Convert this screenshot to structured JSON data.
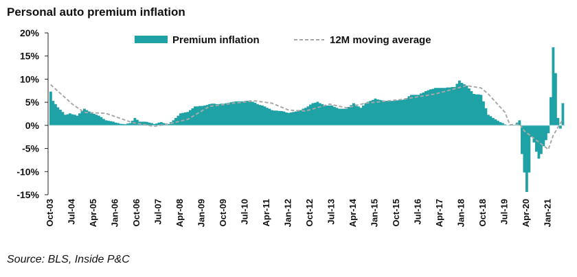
{
  "chart_data": {
    "type": "bar",
    "title": "Personal auto premium inflation",
    "source": "Source: BLS, Inside P&C",
    "xlabel": "",
    "ylabel": "",
    "ylim": [
      -15,
      20
    ],
    "y_ticks": [
      "20%",
      "15%",
      "10%",
      "5%",
      "0%",
      "-5%",
      "-10%",
      "-15%"
    ],
    "y_tick_values": [
      20,
      15,
      10,
      5,
      0,
      -5,
      -10,
      -15
    ],
    "x_start": "Oct-03",
    "x_unit": "months since Oct-03",
    "x_tick_labels": [
      "Oct-03",
      "Jul-04",
      "Apr-05",
      "Jan-06",
      "Oct-06",
      "Jul-07",
      "Apr-08",
      "Jan-09",
      "Oct-09",
      "Jul-10",
      "Apr-11",
      "Jan-12",
      "Oct-12",
      "Jul-13",
      "Apr-14",
      "Jan-15",
      "Oct-15",
      "Jul-16",
      "Apr-17",
      "Jan-18",
      "Oct-18",
      "Jul-19",
      "Apr-20",
      "Jan-21"
    ],
    "x_tick_step_months": 9,
    "legend": {
      "placement": "top-center",
      "entries": [
        "Premium inflation",
        "12M moving average"
      ]
    },
    "colors": {
      "bars": "#1fa2a6",
      "moving_average": "#a8a8a8"
    },
    "series": [
      {
        "name": "Premium inflation",
        "type": "bar",
        "values": [
          7.3,
          5.3,
          4.6,
          3.9,
          3.4,
          2.9,
          2.3,
          2.4,
          2.6,
          2.4,
          2.3,
          2.1,
          2.6,
          3.1,
          3.6,
          3.3,
          3.0,
          2.8,
          2.5,
          2.3,
          2.1,
          1.8,
          1.4,
          1.1,
          1.0,
          0.9,
          0.8,
          0.6,
          0.5,
          0.35,
          0.3,
          0.25,
          0.4,
          0.5,
          1.0,
          1.6,
          1.2,
          0.8,
          0.8,
          0.8,
          0.75,
          0.6,
          0.5,
          0.3,
          0.4,
          0.6,
          0.7,
          0.5,
          0.4,
          0.3,
          0.7,
          1.1,
          1.6,
          2.1,
          2.6,
          2.7,
          2.8,
          2.9,
          3.3,
          3.7,
          4.1,
          4.1,
          4.2,
          4.2,
          4.3,
          4.4,
          4.6,
          4.7,
          4.7,
          4.6,
          4.6,
          4.7,
          4.7,
          4.8,
          4.9,
          5.0,
          5.1,
          5.2,
          5.2,
          5.2,
          5.2,
          5.3,
          5.3,
          5.4,
          5.1,
          4.9,
          4.6,
          4.4,
          4.3,
          4.1,
          3.8,
          3.6,
          3.3,
          3.2,
          3.2,
          3.1,
          3.1,
          3.0,
          2.8,
          2.7,
          2.8,
          2.9,
          3.0,
          3.1,
          3.3,
          3.6,
          3.8,
          4.1,
          4.5,
          4.8,
          4.9,
          5.1,
          4.8,
          4.6,
          4.3,
          4.3,
          4.3,
          4.3,
          4.0,
          3.8,
          3.6,
          3.6,
          3.6,
          3.6,
          4.0,
          4.4,
          4.8,
          4.5,
          4.1,
          3.8,
          4.3,
          4.8,
          5.1,
          5.3,
          5.5,
          5.8,
          5.6,
          5.5,
          5.4,
          5.3,
          5.3,
          5.3,
          5.3,
          5.3,
          5.4,
          5.5,
          5.5,
          5.6,
          5.9,
          6.3,
          6.6,
          6.6,
          6.6,
          6.6,
          6.9,
          7.1,
          7.4,
          7.6,
          7.8,
          7.9,
          8.1,
          8.1,
          8.1,
          8.1,
          8.1,
          8.2,
          8.2,
          8.3,
          8.3,
          9.0,
          9.7,
          9.2,
          8.9,
          8.6,
          8.0,
          7.4,
          6.8,
          6.7,
          6.7,
          6.6,
          5.2,
          3.7,
          2.3,
          2.0,
          1.6,
          1.3,
          1.0,
          0.7,
          0.5,
          0.2,
          0,
          0.1,
          0.1,
          0.1,
          0.6,
          1.1,
          -6.2,
          -10.2,
          -14.4,
          -10.2,
          -2.5,
          -3.7,
          -5.7,
          -7.2,
          -6.2,
          -4.5,
          -3.2,
          -1.7,
          6.1,
          16.9,
          11.3,
          1.6,
          -0.7,
          4.8
        ]
      },
      {
        "name": "12M moving average",
        "type": "line",
        "points": [
          [
            0,
            8.8
          ],
          [
            9,
            4.6
          ],
          [
            14,
            2.8
          ],
          [
            23,
            2.6
          ],
          [
            34,
            0.6
          ],
          [
            43,
            -0.2
          ],
          [
            49,
            0.3
          ],
          [
            57,
            1.3
          ],
          [
            66,
            4.1
          ],
          [
            76,
            4.8
          ],
          [
            85,
            5.3
          ],
          [
            92,
            4.8
          ],
          [
            99,
            3.3
          ],
          [
            106,
            3.1
          ],
          [
            116,
            4.6
          ],
          [
            123,
            3.8
          ],
          [
            131,
            4.8
          ],
          [
            146,
            5.6
          ],
          [
            160,
            6.8
          ],
          [
            173,
            8.6
          ],
          [
            179,
            8.1
          ],
          [
            182,
            6.8
          ],
          [
            189,
            2.8
          ],
          [
            191,
            0.1
          ],
          [
            195,
            0.3
          ],
          [
            197,
            -1.2
          ],
          [
            202,
            -3.2
          ],
          [
            207,
            -5.2
          ],
          [
            209,
            -2.2
          ],
          [
            213,
            1.3
          ]
        ]
      }
    ]
  }
}
